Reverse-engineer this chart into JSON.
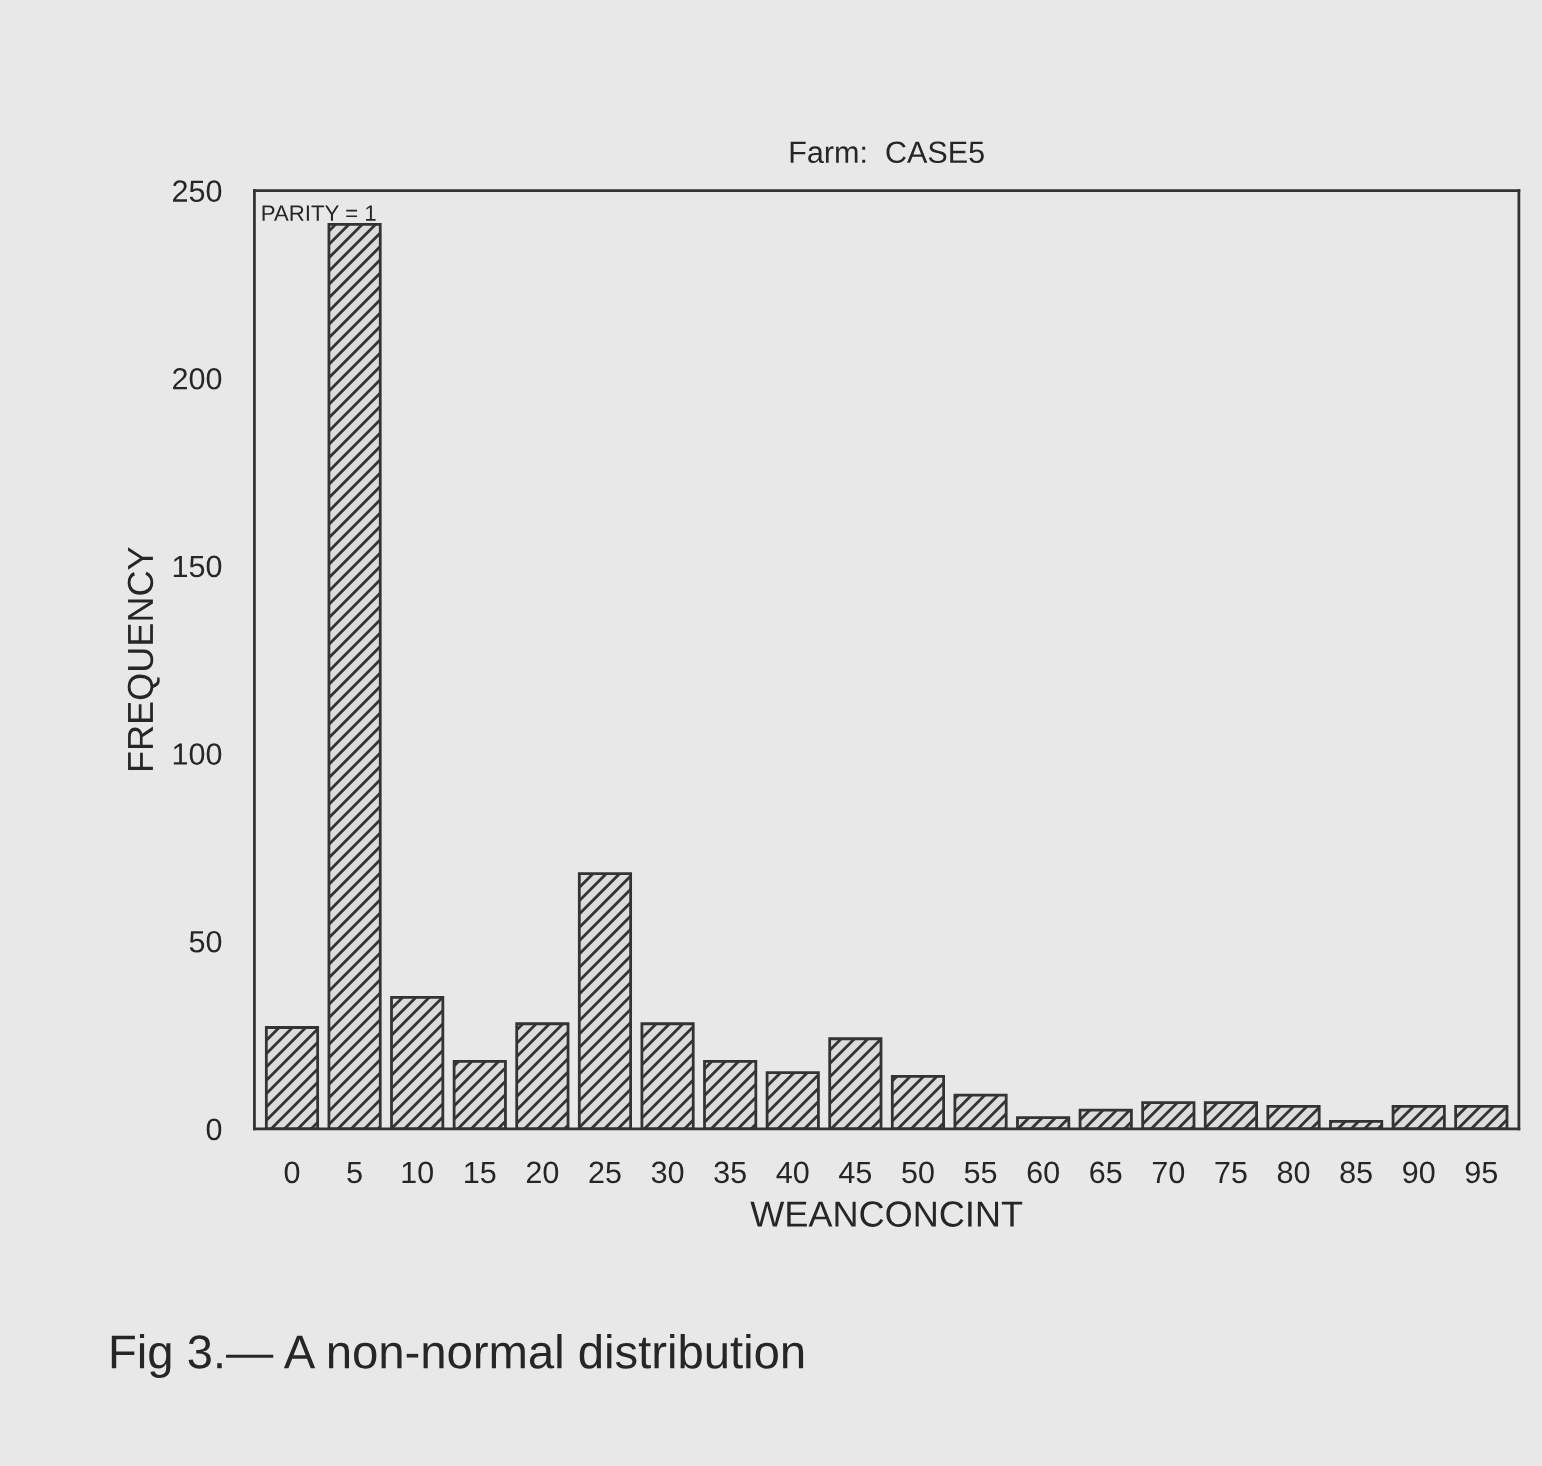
{
  "chart_data": {
    "type": "bar",
    "title": "Farm:  CASE5",
    "xlabel": "WEANCONCINT",
    "ylabel": "FREQUENCY",
    "categories": [
      "0",
      "5",
      "10",
      "15",
      "20",
      "25",
      "30",
      "35",
      "40",
      "45",
      "50",
      "55",
      "60",
      "65",
      "70",
      "75",
      "80",
      "85",
      "90",
      "95"
    ],
    "values": [
      27,
      241,
      35,
      18,
      28,
      68,
      28,
      18,
      15,
      24,
      14,
      9,
      3,
      5,
      7,
      7,
      6,
      2,
      6,
      6
    ],
    "color": "#333333",
    "ylim": [
      0,
      250
    ],
    "yticks": [
      0,
      50,
      100,
      150,
      200,
      250
    ],
    "grid": false,
    "annotations": [
      "PARITY = 1",
      "Fig 3.— A non-normal distribution"
    ]
  }
}
